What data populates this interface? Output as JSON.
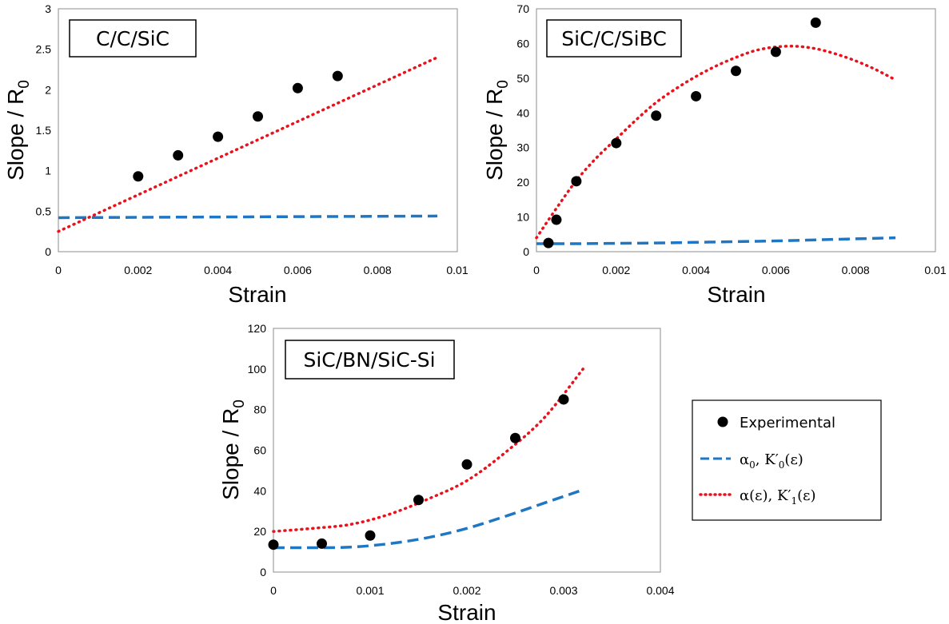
{
  "colors": {
    "experimental": "#000000",
    "alpha0": "#1f77c4",
    "alpha_eps": "#e8121c",
    "frame": "#000000"
  },
  "legend": {
    "items": [
      {
        "key": "experimental",
        "label": "Experimental"
      },
      {
        "key": "alpha0",
        "label_main": "α",
        "label_sub": "0",
        "label_rest": ", K′",
        "label_sub2": "0",
        "label_end": "(ε)"
      },
      {
        "key": "alpha_eps",
        "label_main": "α(ε), K′",
        "label_sub2": "1",
        "label_end": "(ε)"
      }
    ]
  },
  "chart_data": [
    {
      "type": "scatter",
      "title": "C/C/SiC",
      "xlabel": "Strain",
      "ylabel_main": "Slope / R",
      "ylabel_sub": "0",
      "xlim": [
        0,
        0.01
      ],
      "ylim": [
        0,
        3
      ],
      "xticks": [
        "0",
        "0.002",
        "0.004",
        "0.006",
        "0.008",
        "0.01"
      ],
      "yticks": [
        "0",
        "0.5",
        "1",
        "1.5",
        "2",
        "2.5",
        "3"
      ],
      "grid": false,
      "series": [
        {
          "name": "Experimental",
          "style": "points",
          "x": [
            0.002,
            0.003,
            0.004,
            0.005,
            0.006,
            0.007
          ],
          "y": [
            0.93,
            1.19,
            1.42,
            1.67,
            2.02,
            2.17
          ]
        },
        {
          "name": "α0, K′0(ε)",
          "style": "dashed",
          "x": [
            0,
            0.0095
          ],
          "y": [
            0.42,
            0.44
          ]
        },
        {
          "name": "α(ε), K′1(ε)",
          "style": "dotted",
          "x": [
            0,
            0.0095
          ],
          "y": [
            0.25,
            2.4
          ]
        }
      ]
    },
    {
      "type": "scatter",
      "title": "SiC/C/SiBC",
      "xlabel": "Strain",
      "ylabel_main": "Slope / R",
      "ylabel_sub": "0",
      "xlim": [
        0,
        0.01
      ],
      "ylim": [
        0,
        70
      ],
      "xticks": [
        "0",
        "0.002",
        "0.004",
        "0.006",
        "0.008",
        "0.01"
      ],
      "yticks": [
        "0",
        "10",
        "20",
        "30",
        "40",
        "50",
        "60",
        "70"
      ],
      "grid": false,
      "series": [
        {
          "name": "Experimental",
          "style": "points",
          "x": [
            0.0003,
            0.0005,
            0.001,
            0.002,
            0.003,
            0.004,
            0.005,
            0.006,
            0.007
          ],
          "y": [
            2.5,
            9.2,
            20.3,
            31.3,
            39.2,
            44.8,
            52.1,
            57.6,
            66.0
          ]
        },
        {
          "name": "α0, K′0(ε)",
          "style": "dashed",
          "x": [
            0,
            0.001,
            0.002,
            0.003,
            0.004,
            0.005,
            0.006,
            0.007,
            0.008,
            0.009
          ],
          "y": [
            2.3,
            2.3,
            2.4,
            2.5,
            2.7,
            2.9,
            3.1,
            3.4,
            3.7,
            4.0
          ]
        },
        {
          "name": "α(ε), K′1(ε)",
          "style": "dotted",
          "x": [
            0,
            0.0005,
            0.001,
            0.0015,
            0.002,
            0.0025,
            0.003,
            0.0035,
            0.004,
            0.0045,
            0.005,
            0.0055,
            0.006,
            0.0065,
            0.007,
            0.0075,
            0.008,
            0.0085,
            0.009
          ],
          "y": [
            4.0,
            12.5,
            20.5,
            27.0,
            32.5,
            38.0,
            43.0,
            47.0,
            50.5,
            53.5,
            56.0,
            58.0,
            59.0,
            59.2,
            58.5,
            57.0,
            55.0,
            52.5,
            49.5
          ]
        }
      ]
    },
    {
      "type": "scatter",
      "title": "SiC/BN/SiC-Si",
      "xlabel": "Strain",
      "ylabel_main": "Slope / R",
      "ylabel_sub": "0",
      "xlim": [
        0,
        0.004
      ],
      "ylim": [
        0,
        120
      ],
      "xticks": [
        "0",
        "0.001",
        "0.002",
        "0.003",
        "0.004"
      ],
      "yticks": [
        "0",
        "20",
        "40",
        "60",
        "80",
        "100",
        "120"
      ],
      "grid": false,
      "series": [
        {
          "name": "Experimental",
          "style": "points",
          "x": [
            0,
            0.0005,
            0.001,
            0.0015,
            0.002,
            0.0025,
            0.003
          ],
          "y": [
            13.5,
            14.0,
            18.0,
            35.5,
            53.0,
            66.0,
            85.0
          ]
        },
        {
          "name": "α0, K′0(ε)",
          "style": "dashed",
          "x": [
            0,
            0.0004,
            0.0008,
            0.0012,
            0.0016,
            0.002,
            0.0024,
            0.0028,
            0.0032
          ],
          "y": [
            12.0,
            12.0,
            12.3,
            14.0,
            17.0,
            21.5,
            27.5,
            34.0,
            40.5
          ]
        },
        {
          "name": "α(ε), K′1(ε)",
          "style": "dotted",
          "x": [
            0,
            0.0004,
            0.0008,
            0.0012,
            0.0016,
            0.002,
            0.0024,
            0.0028,
            0.0032
          ],
          "y": [
            20.0,
            21.5,
            23.5,
            28.5,
            36.0,
            45.0,
            59.0,
            76.0,
            100.0
          ]
        }
      ]
    }
  ]
}
